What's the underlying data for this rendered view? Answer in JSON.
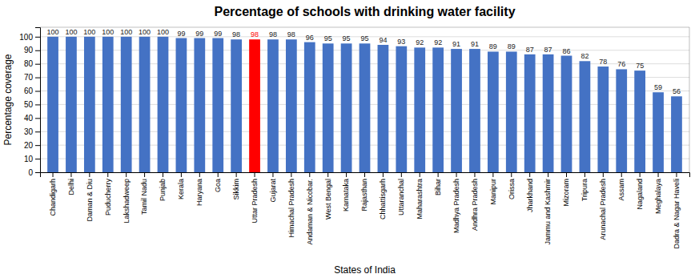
{
  "chart_data": {
    "type": "bar",
    "title": "Percentage of schools with drinking water facility",
    "xlabel": "States of India",
    "ylabel": "Percentage coverage",
    "categories": [
      "Chandigarh",
      "Delhi",
      "Daman & Diu",
      "Puducherry",
      "Lakshadweep",
      "Tamil Nadu",
      "Punjab",
      "Kerala",
      "Haryana",
      "Goa",
      "Sikkim",
      "Uttar Pradesh",
      "Gujarat",
      "Himachal Pradesh",
      "Andaman & Nicobar.",
      "West Bengal",
      "Karnataka",
      "Rajasthan",
      "Chhattisgarh",
      "Uttaranchal",
      "Maharashtra",
      "Bihar",
      "Madhya Pradesh",
      "Andhra Pradesh",
      "Manipur",
      "Orissa",
      "Jharkhand",
      "Jammu and Kashmir",
      "Mizoram",
      "Tripura",
      "Arunachal Pradesh",
      "Assam",
      "Nagaland",
      "Meghalaya",
      "Dadra & Nagar Haveli"
    ],
    "values": [
      100,
      100,
      100,
      100,
      100,
      100,
      100,
      99,
      99,
      99,
      98,
      98,
      98,
      98,
      96,
      95,
      95,
      95,
      94,
      93,
      92,
      92,
      91,
      91,
      89,
      89,
      87,
      87,
      86,
      82,
      78,
      76,
      75,
      59,
      56
    ],
    "colors": [
      "#4472C4",
      "#4472C4",
      "#4472C4",
      "#4472C4",
      "#4472C4",
      "#4472C4",
      "#4472C4",
      "#4472C4",
      "#4472C4",
      "#4472C4",
      "#4472C4",
      "#FF0000",
      "#4472C4",
      "#4472C4",
      "#4472C4",
      "#4472C4",
      "#4472C4",
      "#4472C4",
      "#4472C4",
      "#4472C4",
      "#4472C4",
      "#4472C4",
      "#4472C4",
      "#4472C4",
      "#4472C4",
      "#4472C4",
      "#4472C4",
      "#4472C4",
      "#4472C4",
      "#4472C4",
      "#4472C4",
      "#4472C4",
      "#4472C4",
      "#4472C4",
      "#4472C4"
    ],
    "ylim": [
      0,
      107
    ],
    "yticks": [
      0,
      10,
      20,
      30,
      40,
      50,
      60,
      70,
      80,
      90,
      100
    ],
    "grid": true,
    "data_labels": true
  }
}
